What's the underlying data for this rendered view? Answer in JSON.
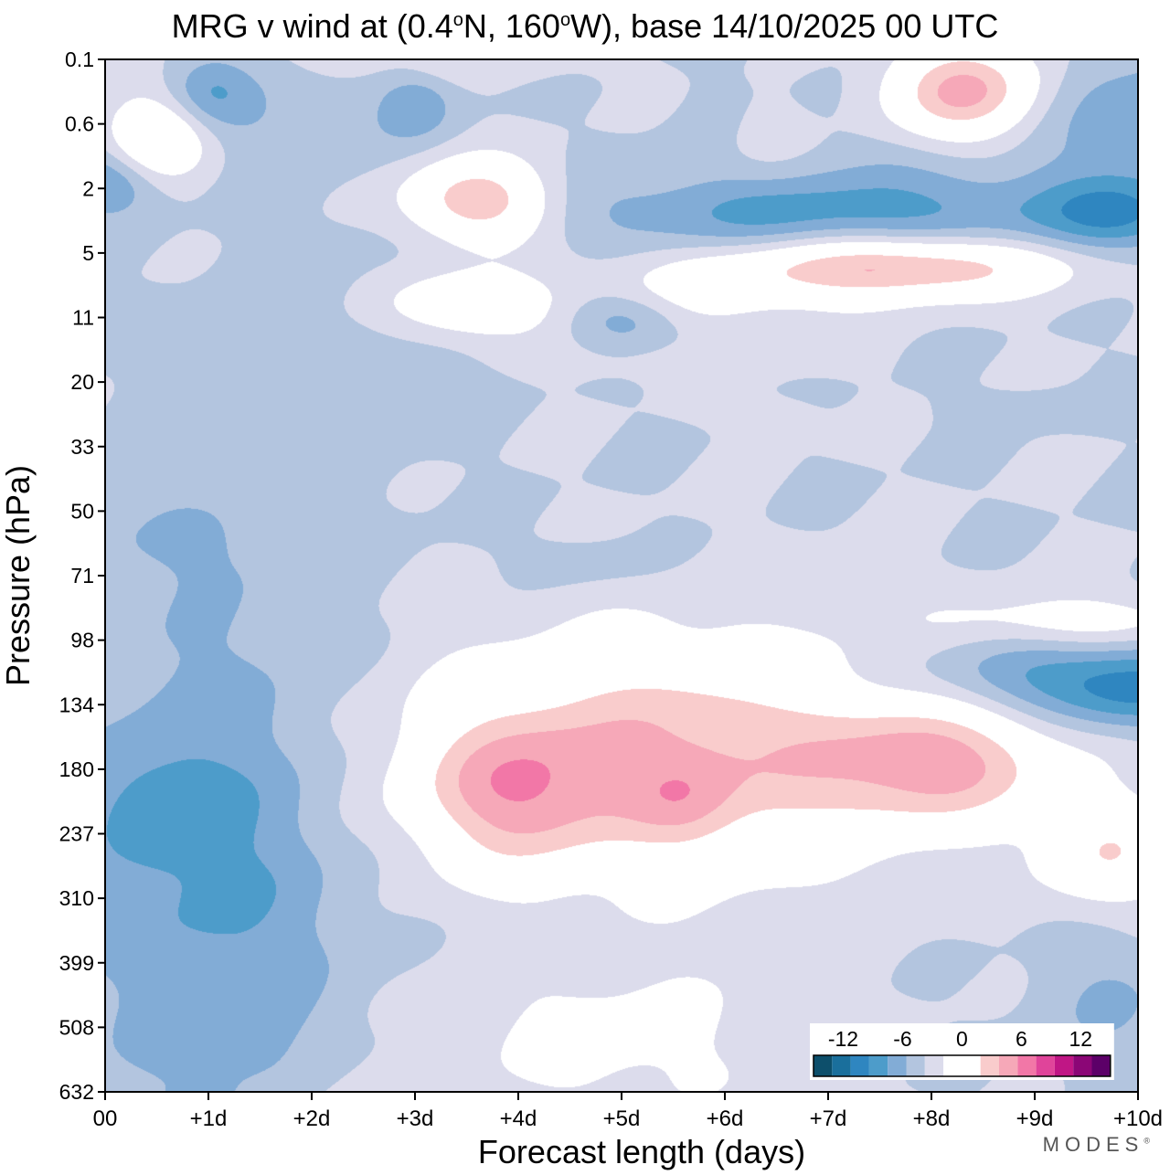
{
  "chart_data": {
    "type": "heatmap",
    "title_parts": {
      "prefix": "MRG v wind at (0.4",
      "deg1": "o",
      "mid": "N, 160",
      "deg2": "o",
      "suffix": "W),  base 14/10/2025  00 UTC"
    },
    "xlabel": "Forecast length (days)",
    "ylabel": "Pressure (hPa)",
    "x_ticks": [
      {
        "day": 0,
        "label": "00"
      },
      {
        "day": 1,
        "label": "+1d"
      },
      {
        "day": 2,
        "label": "+2d"
      },
      {
        "day": 3,
        "label": "+3d"
      },
      {
        "day": 4,
        "label": "+4d"
      },
      {
        "day": 5,
        "label": "+5d"
      },
      {
        "day": 6,
        "label": "+6d"
      },
      {
        "day": 7,
        "label": "+7d"
      },
      {
        "day": 8,
        "label": "+8d"
      },
      {
        "day": 9,
        "label": "+9d"
      },
      {
        "day": 10,
        "label": "+10d"
      }
    ],
    "xlim": [
      0,
      10
    ],
    "y_levels": [
      "0.1",
      "0.6",
      "2",
      "5",
      "11",
      "20",
      "33",
      "50",
      "71",
      "98",
      "134",
      "180",
      "237",
      "310",
      "399",
      "508",
      "632"
    ],
    "legend": {
      "position": "bottom-right",
      "tick_labels": [
        "-12",
        "-6",
        "0",
        "6",
        "12"
      ],
      "tick_values": [
        -12,
        -6,
        0,
        6,
        12
      ],
      "vmin": -15,
      "vmax": 15,
      "step": 2.5,
      "colors": [
        "#0d4f6b",
        "#1a6f9c",
        "#2f86c0",
        "#4d9cca",
        "#82acd6",
        "#b3c5df",
        "#dcdcec",
        "#ffffff",
        "#ffffff",
        "#f9cccc",
        "#f6a8b8",
        "#f277a7",
        "#e0449a",
        "#c01685",
        "#8b0676",
        "#5c0068"
      ]
    },
    "features": [
      {
        "type": "pos",
        "day": 5.5,
        "level": 10.8,
        "sd": 1.7,
        "sl": 1.3,
        "amp": 10.0
      },
      {
        "type": "pos",
        "day": 3.9,
        "level": 11.4,
        "sd": 0.65,
        "sl": 0.8,
        "amp": 7.0
      },
      {
        "type": "pos",
        "day": 8.1,
        "level": 10.9,
        "sd": 0.8,
        "sl": 0.65,
        "amp": 9.0
      },
      {
        "type": "pos",
        "day": 9.7,
        "level": 12.3,
        "sd": 0.45,
        "sl": 0.6,
        "amp": 7.0
      },
      {
        "type": "pos",
        "day": 5.6,
        "level": 11.5,
        "sd": 0.35,
        "sl": 0.5,
        "amp": 3.0
      },
      {
        "type": "pos",
        "day": 4.9,
        "level": 15.2,
        "sd": 1.2,
        "sl": 1.0,
        "amp": 3.5
      },
      {
        "type": "pos",
        "day": 2.4,
        "level": 16.3,
        "sd": 0.55,
        "sl": 0.5,
        "amp": 2.5
      },
      {
        "type": "neg",
        "day": 1.1,
        "level": 12.6,
        "sd": 0.9,
        "sl": 3.0,
        "amp": -5.5
      },
      {
        "type": "neg",
        "day": 0.4,
        "level": 11.6,
        "sd": 0.5,
        "sl": 0.7,
        "amp": -3.0
      },
      {
        "type": "neg",
        "day": 9.7,
        "level": 14.6,
        "sd": 0.5,
        "sl": 0.8,
        "amp": -2.5
      },
      {
        "type": "neg",
        "day": 9.4,
        "level": 9.6,
        "sd": 1.1,
        "sl": 0.45,
        "amp": -7.0
      },
      {
        "type": "neg",
        "day": 10.0,
        "level": 9.9,
        "sd": 0.5,
        "sl": 0.4,
        "amp": -3.5
      },
      {
        "type": "pos",
        "day": 9.4,
        "level": 8.7,
        "sd": 0.9,
        "sl": 0.3,
        "amp": 4.5
      },
      {
        "type": "neg",
        "day": 4.6,
        "level": 7.8,
        "sd": 0.5,
        "sl": 0.3,
        "amp": -1.6
      },
      {
        "type": "pos",
        "day": 7.7,
        "level": 3.2,
        "sd": 1.1,
        "sl": 0.35,
        "amp": 11.0
      },
      {
        "type": "pos",
        "day": 5.8,
        "level": 3.6,
        "sd": 1.0,
        "sl": 0.45,
        "amp": 3.5
      },
      {
        "type": "pos",
        "day": 3.6,
        "level": 2.2,
        "sd": 0.5,
        "sl": 0.45,
        "amp": 10.5
      },
      {
        "type": "neg",
        "day": 7.0,
        "level": 2.4,
        "sd": 1.8,
        "sl": 0.45,
        "amp": -6.0
      },
      {
        "type": "neg",
        "day": 9.8,
        "level": 2.4,
        "sd": 0.5,
        "sl": 0.4,
        "amp": -6.5
      },
      {
        "type": "pos",
        "day": 8.3,
        "level": 0.5,
        "sd": 0.55,
        "sl": 0.55,
        "amp": 12.0
      },
      {
        "type": "pos",
        "day": 3.5,
        "level": 3.8,
        "sd": 0.55,
        "sl": 0.35,
        "amp": 6.5
      },
      {
        "type": "neg",
        "day": 5.0,
        "level": 4.0,
        "sd": 0.4,
        "sl": 0.3,
        "amp": -4.5
      },
      {
        "type": "pos",
        "day": 0.5,
        "level": 1.2,
        "sd": 0.35,
        "sl": 0.45,
        "amp": 8.0
      },
      {
        "type": "neg",
        "day": 1.0,
        "level": 0.5,
        "sd": 0.3,
        "sl": 0.4,
        "amp": -4.5
      },
      {
        "type": "neg",
        "day": 3.0,
        "level": 0.7,
        "sd": 0.25,
        "sl": 0.35,
        "amp": -4.0
      },
      {
        "type": "neg",
        "day": 0.0,
        "level": 1.9,
        "sd": 0.35,
        "sl": 0.35,
        "amp": -5.5
      },
      {
        "type": "neg",
        "day": 1.8,
        "level": 1.0,
        "sd": 0.8,
        "sl": 0.5,
        "amp": -2.0
      },
      {
        "type": "neg",
        "day": 10.0,
        "level": 0.9,
        "sd": 0.7,
        "sl": 0.7,
        "amp": -3.5
      },
      {
        "type": "neg",
        "day": 8.2,
        "level": 1.1,
        "sd": 1.5,
        "sl": 1.0,
        "amp": -1.5
      },
      {
        "type": "pos",
        "day": 6.4,
        "level": 1.2,
        "sd": 0.3,
        "sl": 0.5,
        "amp": 2.0
      },
      {
        "type": "neg",
        "day": 3.1,
        "level": 5.0,
        "sd": 0.4,
        "sl": 0.3,
        "amp": -1.8
      },
      {
        "type": "pos",
        "day": 6.5,
        "level": 5.5,
        "sd": 0.3,
        "sl": 0.2,
        "amp": 1.6
      },
      {
        "type": "pos",
        "day": 5.5,
        "level": 4.7,
        "sd": 1.0,
        "sl": 0.2,
        "amp": 1.3
      },
      {
        "type": "neg",
        "day": 0.8,
        "level": 7.5,
        "sd": 1.0,
        "sl": 0.5,
        "amp": -1.6
      },
      {
        "type": "neg",
        "day": 9.0,
        "level": 5.4,
        "sd": 0.5,
        "sl": 0.2,
        "amp": -1.4
      },
      {
        "type": "neg",
        "day": 2.0,
        "level": 4.5,
        "sd": 0.8,
        "sl": 1.5,
        "amp": -1.4
      },
      {
        "type": "pos",
        "day": 3.4,
        "level": 0.1,
        "sd": 1.0,
        "sl": 0.2,
        "amp": 1.5
      }
    ]
  },
  "brand": {
    "name": "MODES",
    "mark": "®"
  }
}
